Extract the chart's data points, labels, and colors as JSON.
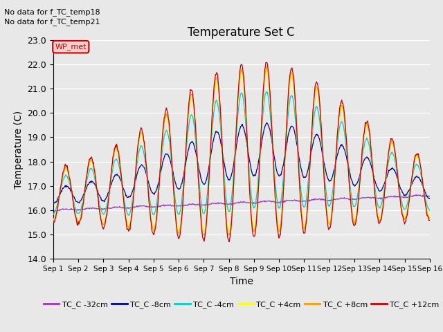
{
  "title": "Temperature Set C",
  "xlabel": "Time",
  "ylabel": "Temperature (C)",
  "ylim": [
    14.0,
    23.0
  ],
  "yticks": [
    14.0,
    15.0,
    16.0,
    17.0,
    18.0,
    19.0,
    20.0,
    21.0,
    22.0,
    23.0
  ],
  "text_no_data": [
    "No data for f_TC_temp18",
    "No data for f_TC_temp21"
  ],
  "wp_met_label": "WP_met",
  "wp_met_color": "#cc0000",
  "wp_met_bg": "#ffcccc",
  "legend_entries": [
    "TC_C -32cm",
    "TC_C -8cm",
    "TC_C -4cm",
    "TC_C +4cm",
    "TC_C +8cm",
    "TC_C +12cm"
  ],
  "legend_colors": [
    "#9933cc",
    "#000099",
    "#00cccc",
    "#ffff00",
    "#ff9900",
    "#cc0000"
  ],
  "background_color": "#e8e8e8",
  "plot_bg_color": "#e8e8e8",
  "grid_color": "#ffffff",
  "n_days": 15,
  "points_per_day": 48
}
